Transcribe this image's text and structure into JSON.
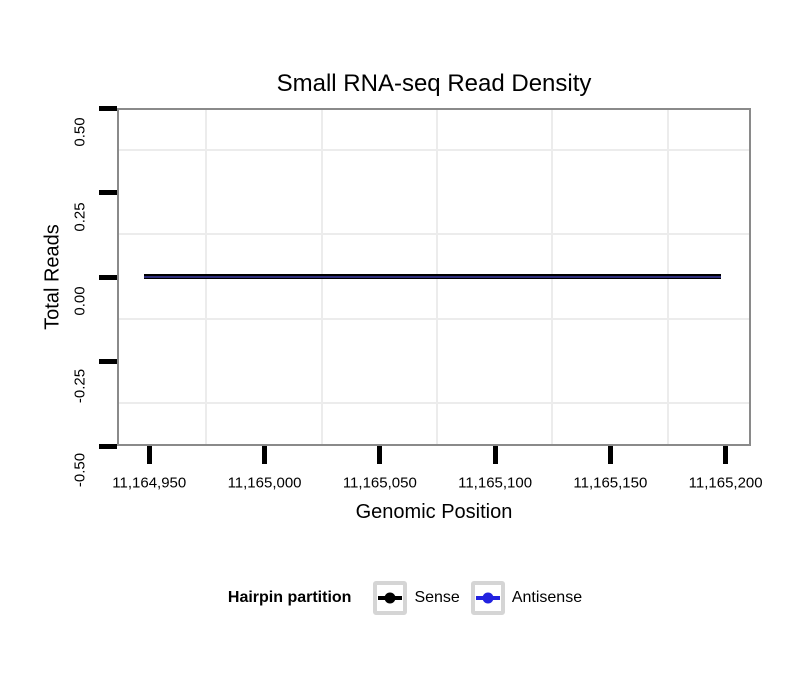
{
  "chart_data": {
    "type": "line",
    "title": "Small RNA-seq Read Density",
    "xlabel": "Genomic Position",
    "ylabel": "Total Reads",
    "xlim": [
      11164936,
      11165211
    ],
    "ylim": [
      -0.5,
      0.5
    ],
    "x_ticks": [
      {
        "value": 11164950,
        "label": "11,164,950"
      },
      {
        "value": 11165000,
        "label": "11,165,000"
      },
      {
        "value": 11165050,
        "label": "11,165,050"
      },
      {
        "value": 11165100,
        "label": "11,165,100"
      },
      {
        "value": 11165150,
        "label": "11,165,150"
      },
      {
        "value": 11165200,
        "label": "11,165,200"
      }
    ],
    "y_ticks": [
      {
        "value": 0.5,
        "label": "0.50"
      },
      {
        "value": 0.25,
        "label": "0.25"
      },
      {
        "value": 0,
        "label": "0.00"
      },
      {
        "value": -0.25,
        "label": "-0.25"
      },
      {
        "value": -0.5,
        "label": "-0.50"
      }
    ],
    "x_minor_gridlines": [
      11164975,
      11165025,
      11165075,
      11165125,
      11165175
    ],
    "y_minor_gridlines": [
      0.375,
      0.125,
      -0.125,
      -0.375
    ],
    "grid": "minor gridlines only, very light gray on white panel",
    "legend": {
      "title": "Hairpin partition",
      "position": "bottom",
      "items": [
        {
          "label": "Sense",
          "color": "#000000"
        },
        {
          "label": "Antisense",
          "color": "#2222e0"
        }
      ]
    },
    "series": [
      {
        "name": "Sense",
        "color": "#000000",
        "x_start": 11164948,
        "x_end": 11165198,
        "y": 0
      },
      {
        "name": "Antisense",
        "color": "#2222e0",
        "x_start": 11164948,
        "x_end": 11165198,
        "y": 0
      }
    ]
  },
  "colors": {
    "panel_border": "#8a8a8a",
    "tick": "#000000",
    "minor_grid": "#ececec",
    "text": "#000000",
    "legend_key_border": "#d5d5d5",
    "overlap_line_core": "#2e2e7a"
  }
}
